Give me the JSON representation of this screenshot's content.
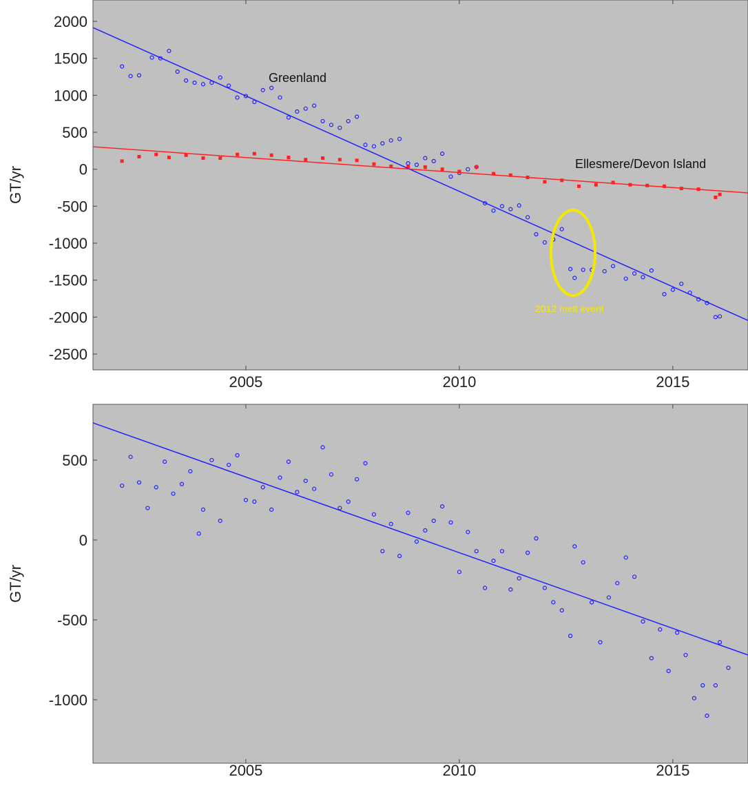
{
  "chart_data": [
    {
      "type": "scatter",
      "ylabel": "GT/yr",
      "xlim": [
        2001.42,
        2016.76
      ],
      "ylim": [
        -2714,
        2289
      ],
      "xticks": [
        2005,
        2010,
        2015
      ],
      "yticks": [
        2000,
        1500,
        1000,
        500,
        0,
        -500,
        -1000,
        -1500,
        -2000,
        -2500
      ],
      "annotations": [
        "Greenland",
        "Ellesmere/Devon Island",
        "2012 melt event"
      ],
      "series": [
        {
          "name": "Greenland",
          "color": "#2020ff",
          "marker": "circle",
          "x": [
            2002.1,
            2002.3,
            2002.5,
            2002.8,
            2003.0,
            2003.2,
            2003.4,
            2003.6,
            2003.8,
            2004.0,
            2004.2,
            2004.4,
            2004.6,
            2004.8,
            2005.0,
            2005.2,
            2005.4,
            2005.6,
            2005.8,
            2006.0,
            2006.2,
            2006.4,
            2006.6,
            2006.8,
            2007.0,
            2007.2,
            2007.4,
            2007.6,
            2007.8,
            2008.0,
            2008.2,
            2008.4,
            2008.6,
            2008.8,
            2009.0,
            2009.2,
            2009.4,
            2009.6,
            2009.8,
            2010.0,
            2010.2,
            2010.4,
            2010.6,
            2010.8,
            2011.0,
            2011.2,
            2011.4,
            2011.6,
            2011.8,
            2012.0,
            2012.2,
            2012.4,
            2012.6,
            2012.7,
            2012.9,
            2013.1,
            2013.4,
            2013.6,
            2013.9,
            2014.1,
            2014.3,
            2014.5,
            2014.8,
            2015.0,
            2015.2,
            2015.4,
            2015.6,
            2015.8,
            2016.0,
            2016.1
          ],
          "values": [
            1390,
            1260,
            1270,
            1510,
            1500,
            1600,
            1320,
            1200,
            1170,
            1150,
            1170,
            1240,
            1130,
            970,
            990,
            910,
            1070,
            1100,
            970,
            700,
            780,
            820,
            860,
            650,
            600,
            560,
            650,
            710,
            330,
            310,
            350,
            390,
            410,
            80,
            60,
            150,
            110,
            210,
            -100,
            -50,
            0,
            30,
            -460,
            -560,
            -500,
            -540,
            -490,
            -650,
            -880,
            -990,
            -950,
            -810,
            -1350,
            -1470,
            -1360,
            -1360,
            -1380,
            -1310,
            -1480,
            -1410,
            -1460,
            -1370,
            -1690,
            -1630,
            -1550,
            -1670,
            -1760,
            -1810,
            -2000,
            -1990
          ]
        },
        {
          "name": "Ellesmere/Devon Island",
          "color": "#ff2020",
          "marker": "square",
          "x": [
            2002.1,
            2002.5,
            2002.9,
            2003.2,
            2003.6,
            2004.0,
            2004.4,
            2004.8,
            2005.2,
            2005.6,
            2006.0,
            2006.4,
            2006.8,
            2007.2,
            2007.6,
            2008.0,
            2008.4,
            2008.8,
            2009.2,
            2009.6,
            2010.0,
            2010.4,
            2010.8,
            2011.2,
            2011.6,
            2012.0,
            2012.4,
            2012.8,
            2013.2,
            2013.6,
            2014.0,
            2014.4,
            2014.8,
            2015.2,
            2015.6,
            2016.0,
            2016.1
          ],
          "values": [
            110,
            170,
            200,
            160,
            190,
            150,
            150,
            200,
            210,
            190,
            160,
            130,
            150,
            130,
            120,
            70,
            40,
            30,
            30,
            0,
            -30,
            30,
            -60,
            -80,
            -110,
            -170,
            -150,
            -230,
            -210,
            -180,
            -210,
            -220,
            -230,
            -260,
            -270,
            -380,
            -340
          ]
        },
        {
          "color": "#2020ff",
          "marker": "line",
          "x": [
            2001.42,
            2016.76
          ],
          "values": [
            1916,
            -2045
          ]
        },
        {
          "color": "#ff2020",
          "marker": "line",
          "x": [
            2001.42,
            2016.76
          ],
          "values": [
            304,
            -320
          ]
        }
      ]
    },
    {
      "type": "scatter",
      "ylabel": "GT/yr",
      "xlim": [
        2001.42,
        2016.76
      ],
      "ylim": [
        -1397,
        849
      ],
      "xticks": [
        2005,
        2010,
        2015
      ],
      "yticks": [
        500,
        0,
        -500,
        -1000
      ],
      "series": [
        {
          "color": "#2020ff",
          "marker": "circle",
          "x": [
            2002.1,
            2002.3,
            2002.5,
            2002.7,
            2002.9,
            2003.1,
            2003.3,
            2003.5,
            2003.7,
            2003.9,
            2004.0,
            2004.2,
            2004.4,
            2004.6,
            2004.8,
            2005.0,
            2005.2,
            2005.4,
            2005.6,
            2005.8,
            2006.0,
            2006.2,
            2006.4,
            2006.6,
            2006.8,
            2007.0,
            2007.2,
            2007.4,
            2007.6,
            2007.8,
            2008.0,
            2008.2,
            2008.4,
            2008.6,
            2008.8,
            2009.0,
            2009.2,
            2009.4,
            2009.6,
            2009.8,
            2010.0,
            2010.2,
            2010.4,
            2010.6,
            2010.8,
            2011.0,
            2011.2,
            2011.4,
            2011.6,
            2011.8,
            2012.0,
            2012.2,
            2012.4,
            2012.6,
            2012.7,
            2012.9,
            2013.1,
            2013.3,
            2013.5,
            2013.7,
            2013.9,
            2014.1,
            2014.3,
            2014.5,
            2014.7,
            2014.9,
            2015.1,
            2015.3,
            2015.5,
            2015.7,
            2015.8,
            2016.0,
            2016.1,
            2016.3
          ],
          "values": [
            340,
            520,
            360,
            200,
            330,
            490,
            290,
            350,
            430,
            40,
            190,
            500,
            120,
            470,
            530,
            250,
            240,
            330,
            190,
            390,
            490,
            300,
            370,
            320,
            580,
            410,
            200,
            240,
            380,
            480,
            160,
            -70,
            100,
            -100,
            170,
            -10,
            60,
            120,
            210,
            110,
            -200,
            50,
            -70,
            -300,
            -130,
            -70,
            -310,
            -240,
            -80,
            10,
            -300,
            -390,
            -440,
            -600,
            -40,
            -140,
            -390,
            -640,
            -360,
            -270,
            -110,
            -230,
            -510,
            -740,
            -560,
            -820,
            -580,
            -720,
            -990,
            -910,
            -1100,
            -910,
            -640,
            -800
          ]
        },
        {
          "color": "#2020ff",
          "marker": "line",
          "x": [
            2001.42,
            2016.76
          ],
          "values": [
            733,
            -720
          ]
        }
      ]
    }
  ]
}
